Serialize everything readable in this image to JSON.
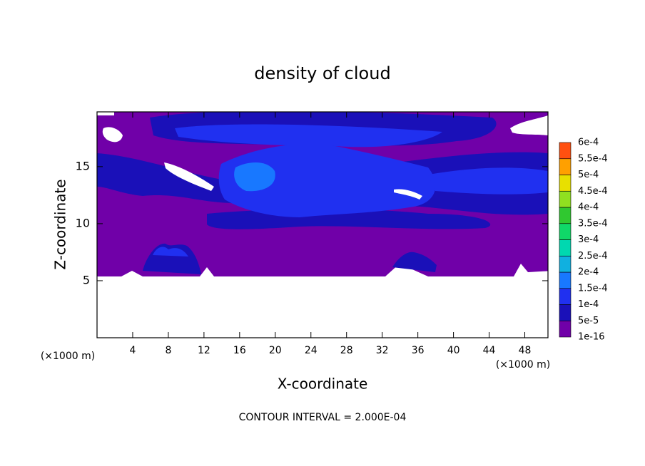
{
  "chart_data": {
    "type": "contour",
    "title": "density of cloud",
    "x_label": "X-coordinate",
    "y_label": "Z-coordinate",
    "unit_label": "(×1000 m)",
    "footer": "CONTOUR INTERVAL = 2.000E-04",
    "xlim": [
      0,
      50.6
    ],
    "ylim": [
      0,
      19.8
    ],
    "xticks": [
      4,
      8,
      12,
      16,
      20,
      24,
      28,
      32,
      36,
      40,
      44,
      48
    ],
    "yticks": [
      5,
      10,
      15
    ],
    "colorbar": {
      "levels": [
        {
          "value": 1e-16,
          "label": "1e-16"
        },
        {
          "value": 5e-05,
          "label": "5e-5"
        },
        {
          "value": 0.0001,
          "label": "1e-4"
        },
        {
          "value": 0.00015,
          "label": "1.5e-4"
        },
        {
          "value": 0.0002,
          "label": "2e-4"
        },
        {
          "value": 0.00025,
          "label": "2.5e-4"
        },
        {
          "value": 0.0003,
          "label": "3e-4"
        },
        {
          "value": 0.00035,
          "label": "3.5e-4"
        },
        {
          "value": 0.0004,
          "label": "4e-4"
        },
        {
          "value": 0.00045,
          "label": "4.5e-4"
        },
        {
          "value": 0.0005,
          "label": "5e-4"
        },
        {
          "value": 0.00055,
          "label": "5.5e-4"
        },
        {
          "value": 0.0006,
          "label": "6e-4"
        }
      ],
      "colors": [
        "#7000a8",
        "#1a10b8",
        "#2030f0",
        "#1878ff",
        "#10b0e0",
        "#00d8b0",
        "#10d868",
        "#30c830",
        "#90e020",
        "#e8e000",
        "#ffa000",
        "#ff5010",
        "#ff8a8a"
      ]
    }
  }
}
